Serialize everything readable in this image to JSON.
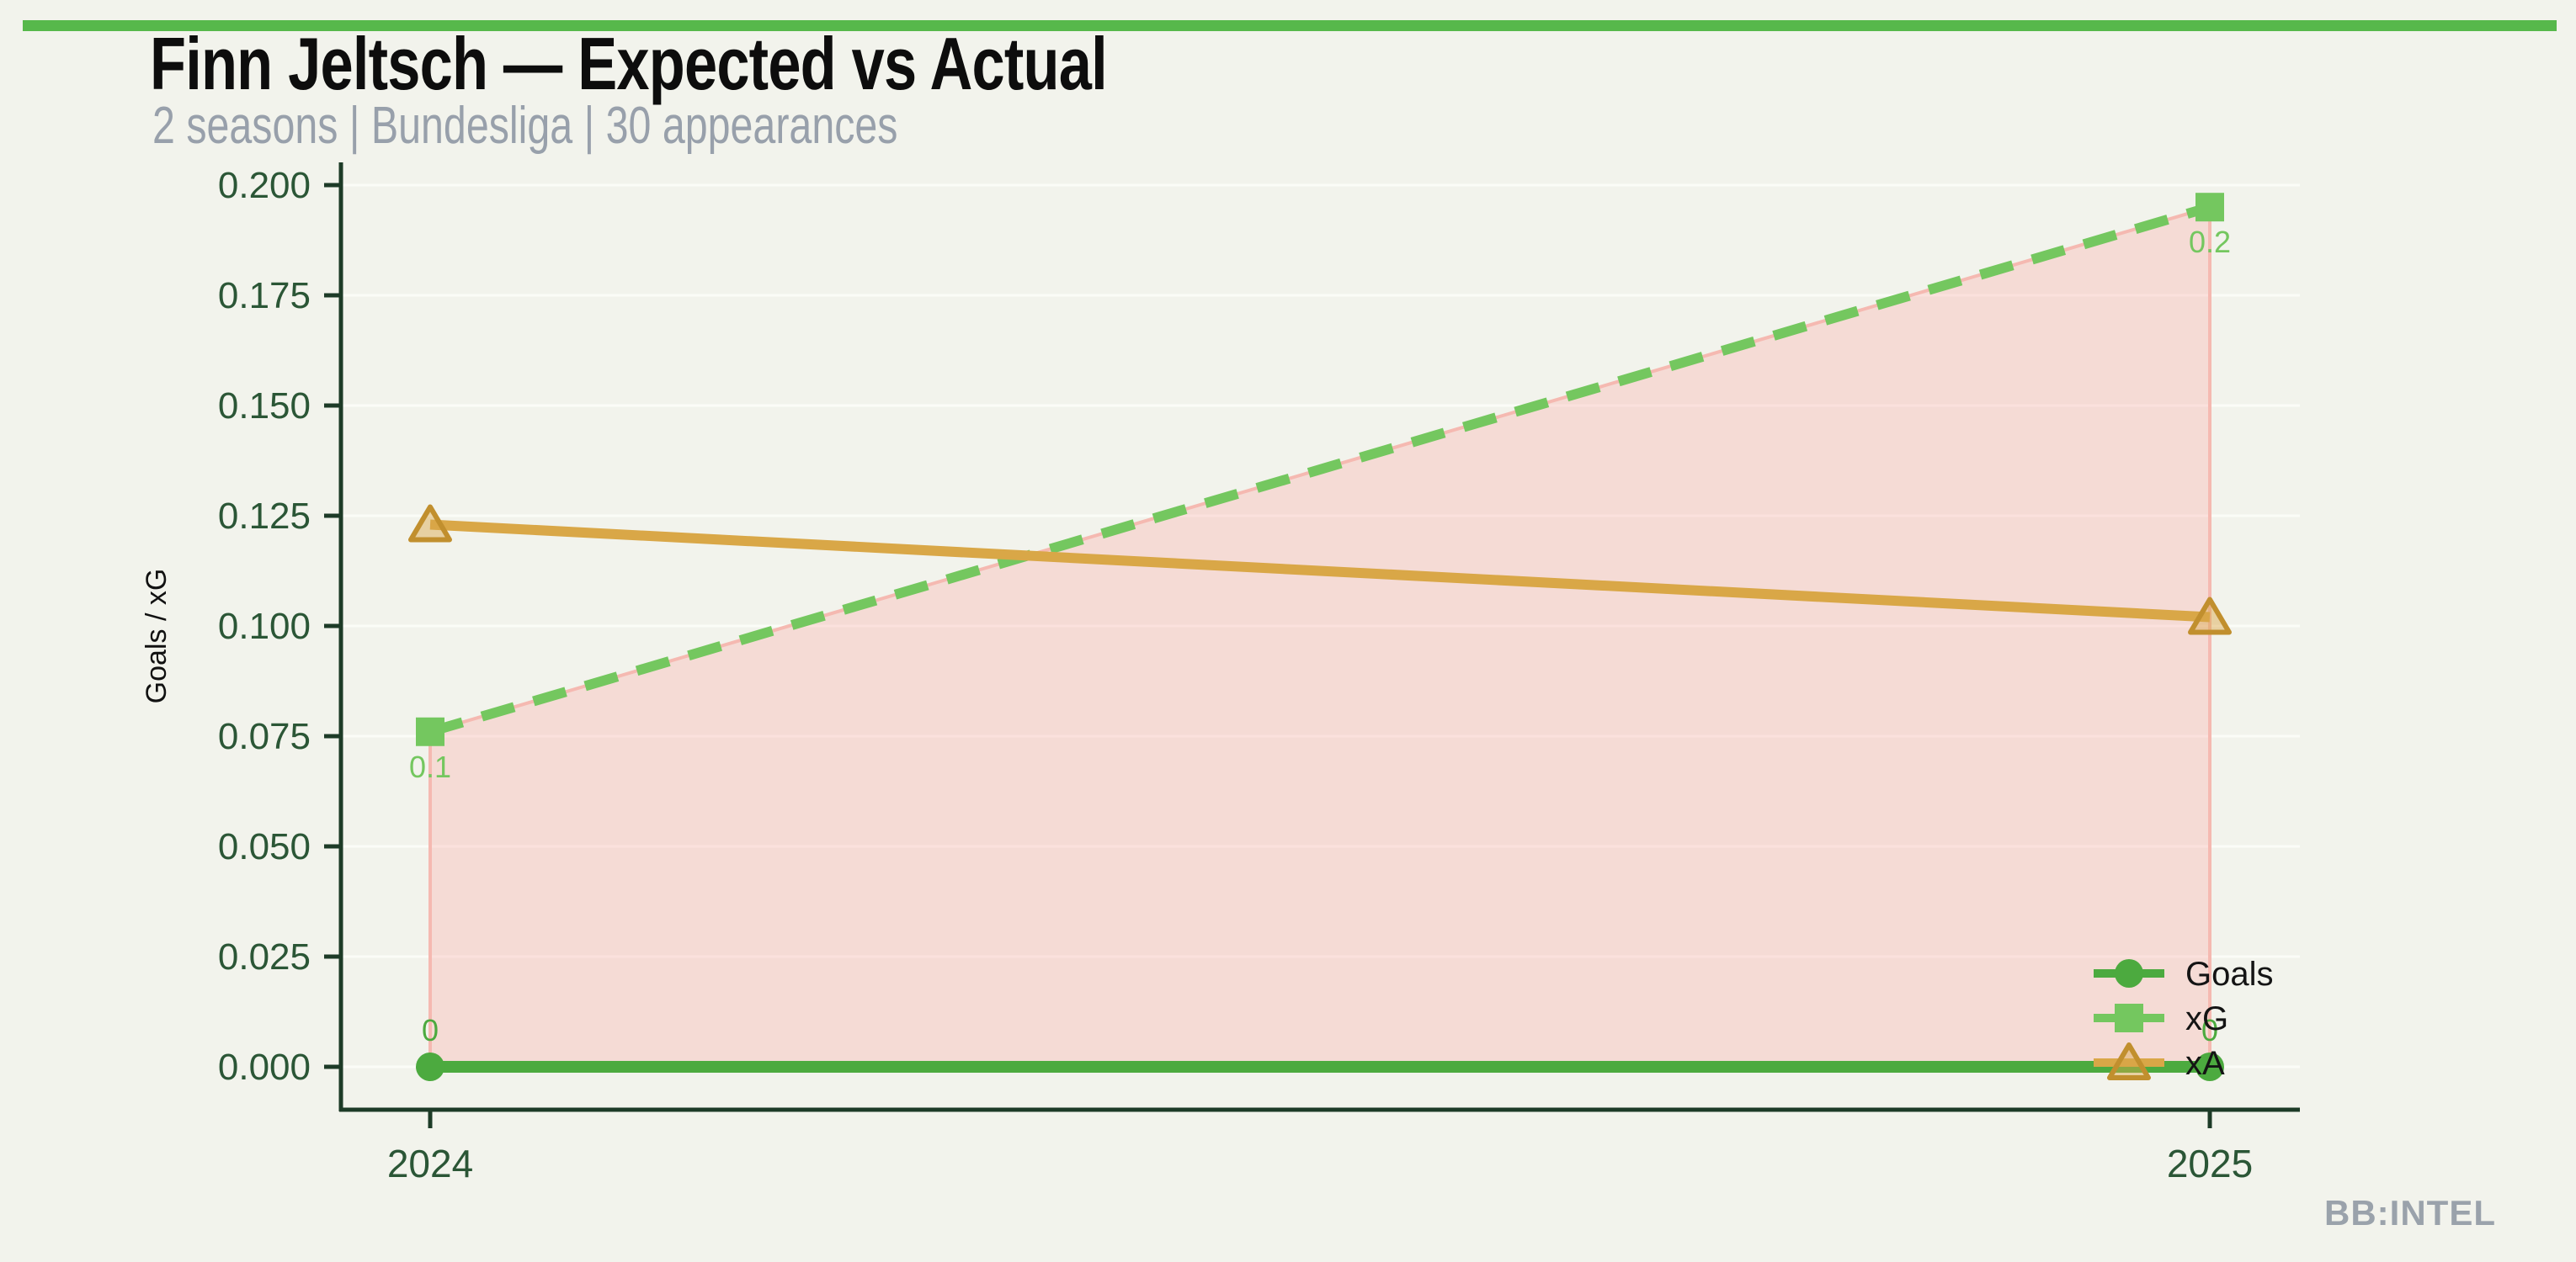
{
  "header": {
    "title": "Finn Jeltsch — Expected vs Actual",
    "subtitle": "2 seasons | Bundesliga | 30 appearances"
  },
  "footer": {
    "watermark": "BB:INTEL"
  },
  "accent_bar_color": "#57b84b",
  "chart_data": {
    "type": "line",
    "title": "Finn Jeltsch — Expected vs Actual",
    "subtitle": "2 seasons | Bundesliga | 30 appearances",
    "categories": [
      "2024",
      "2025"
    ],
    "series": [
      {
        "name": "Goals",
        "values": [
          0,
          0
        ],
        "color": "#4caa3f",
        "marker": "circle",
        "dash": false,
        "line_width": 14,
        "point_labels": [
          "0",
          "0"
        ],
        "label_side": "above"
      },
      {
        "name": "xG",
        "values": [
          0.076,
          0.195
        ],
        "color": "#74c75f",
        "marker": "square",
        "dash": true,
        "line_width": 12,
        "point_labels": [
          "0.1",
          "0.2"
        ],
        "label_side": "below"
      },
      {
        "name": "xA",
        "values": [
          0.123,
          0.102
        ],
        "color": "#d9a747",
        "marker": "triangle",
        "dash": false,
        "line_width": 12,
        "marker_edge": "#c18f2e",
        "point_labels": [],
        "label_side": "below"
      }
    ],
    "area": {
      "between": [
        "xG",
        "Goals"
      ],
      "fill": "rgba(253,174,173,0.35)",
      "edge": "#f5b9b1"
    },
    "xlabel": "",
    "ylabel": "Goals / xG",
    "ylim": [
      0,
      0.2
    ],
    "yticks": [
      0,
      0.025,
      0.05,
      0.075,
      0.1,
      0.125,
      0.15,
      0.175,
      0.2
    ],
    "ytick_labels": [
      "0.000",
      "0.025",
      "0.050",
      "0.075",
      "0.100",
      "0.125",
      "0.150",
      "0.175",
      "0.200"
    ],
    "grid": "horizontal",
    "legend_position": "lower right",
    "axis_color": "#1d3b27",
    "tick_label_color": "#2b5636",
    "grid_color": "#fbfcf7",
    "legend_text_color": "#141414"
  }
}
